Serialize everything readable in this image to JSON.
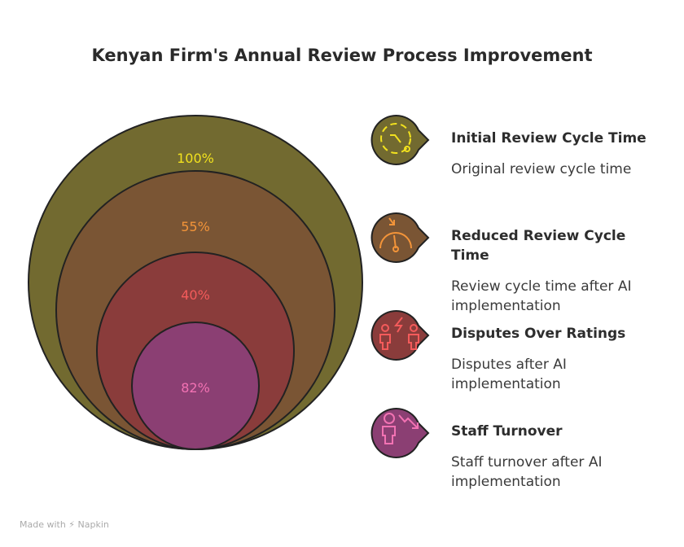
{
  "title": "Kenyan Firm's Annual Review Process Improvement",
  "circles": [
    {
      "label": "100%",
      "fill": "#726a30",
      "text": "#f2e21e"
    },
    {
      "label": "55%",
      "fill": "#7a5534",
      "text": "#f39439"
    },
    {
      "label": "40%",
      "fill": "#8a3c3b",
      "text": "#f45b5b"
    },
    {
      "label": "82%",
      "fill": "#8b3f73",
      "text": "#f272b3"
    }
  ],
  "items": [
    {
      "title": "Initial Review Cycle Time",
      "desc": "Original review cycle time",
      "icon": "clock-icon"
    },
    {
      "title": "Reduced Review Cycle Time",
      "desc": "Review cycle time after AI implementation",
      "icon": "speedometer-icon"
    },
    {
      "title": "Disputes Over Ratings",
      "desc": "Disputes after AI implementation",
      "icon": "people-conflict-icon"
    },
    {
      "title": "Staff Turnover",
      "desc": "Staff turnover after AI implementation",
      "icon": "person-decline-icon"
    }
  ],
  "footer": "Made with ⚡ Napkin"
}
